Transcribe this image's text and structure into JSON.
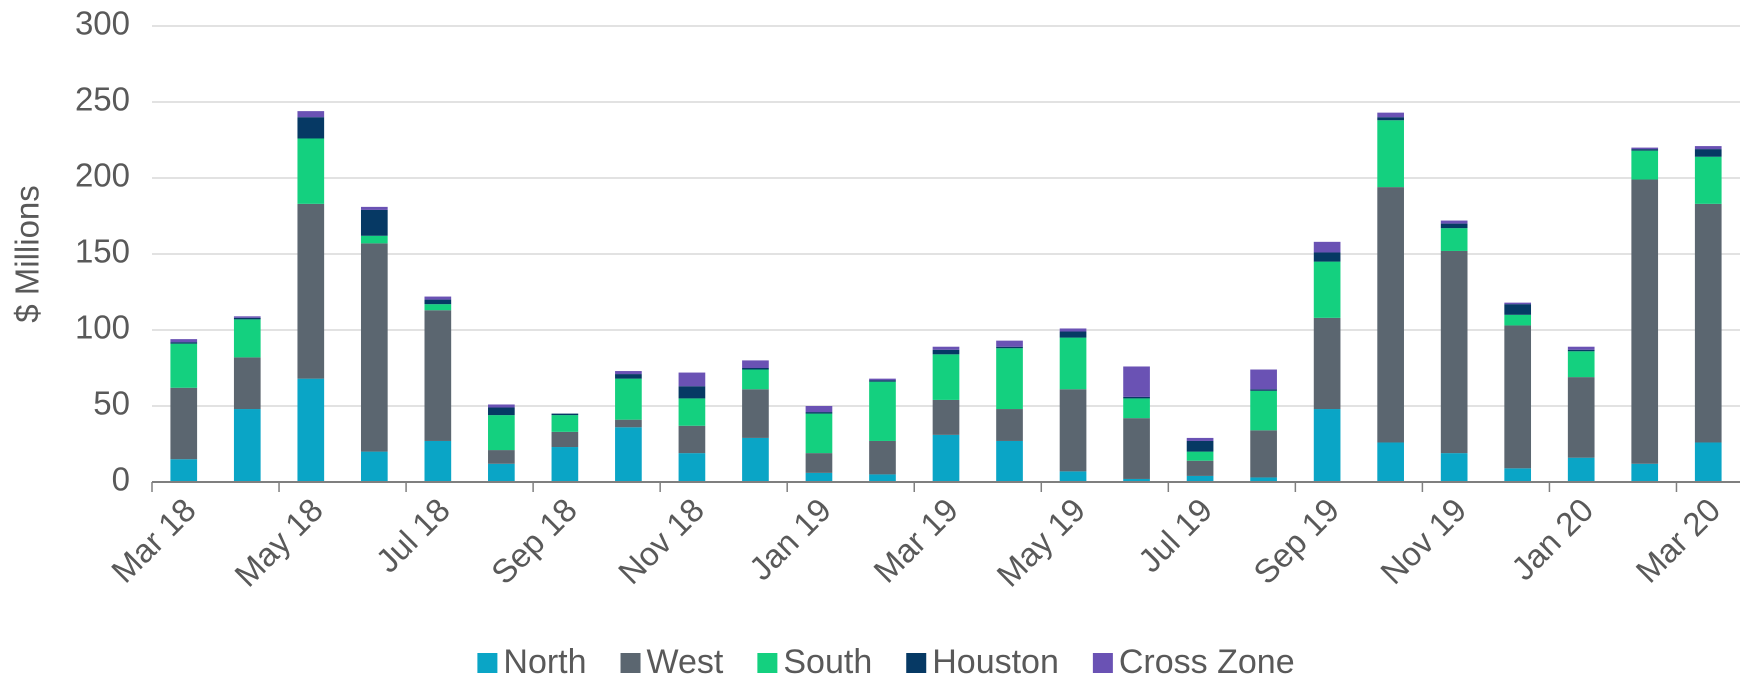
{
  "chart_data": {
    "type": "stacked_bar",
    "y_label": "$ Millions",
    "categories": [
      "Mar 18",
      null,
      "May 18",
      null,
      "Jul 18",
      null,
      "Sep 18",
      null,
      "Nov 18",
      null,
      "Jan 19",
      null,
      "Mar 19",
      null,
      "May 19",
      null,
      "Jul 19",
      null,
      "Sep 19",
      null,
      "Nov 19",
      null,
      "Jan 20",
      null,
      "Mar 20"
    ],
    "series": [
      {
        "name": "North",
        "color": "#0aa5c6",
        "values": [
          15,
          48,
          68,
          20,
          27,
          12,
          23,
          36,
          19,
          29,
          6,
          5,
          31,
          27,
          7,
          2,
          4,
          3,
          48,
          26,
          19,
          9,
          16,
          12,
          26
        ]
      },
      {
        "name": "West",
        "color": "#5b6670",
        "values": [
          47,
          34,
          115,
          137,
          86,
          9,
          10,
          5,
          18,
          32,
          13,
          22,
          23,
          21,
          54,
          40,
          10,
          31,
          60,
          168,
          133,
          94,
          53,
          187,
          157
        ]
      },
      {
        "name": "South",
        "color": "#14d07f",
        "values": [
          29,
          25,
          43,
          5,
          4,
          23,
          11,
          27,
          18,
          13,
          26,
          39,
          30,
          40,
          34,
          13,
          6,
          26,
          37,
          44,
          15,
          7,
          17,
          19,
          31
        ]
      },
      {
        "name": "Houston",
        "color": "#063964",
        "values": [
          1,
          1,
          14,
          17,
          3,
          5,
          1,
          3,
          8,
          1,
          1,
          1,
          3,
          1,
          4,
          1,
          7,
          1,
          6,
          2,
          3,
          7,
          1,
          1,
          5
        ]
      },
      {
        "name": "Cross Zone",
        "color": "#6a52b4",
        "values": [
          2,
          1,
          4,
          2,
          2,
          2,
          0,
          2,
          9,
          5,
          4,
          1,
          2,
          4,
          2,
          20,
          2,
          13,
          7,
          3,
          2,
          1,
          2,
          1,
          2
        ]
      }
    ],
    "ylim": [
      0,
      300
    ],
    "yticks": [
      0,
      50,
      100,
      150,
      200,
      250,
      300
    ],
    "grid": true
  }
}
